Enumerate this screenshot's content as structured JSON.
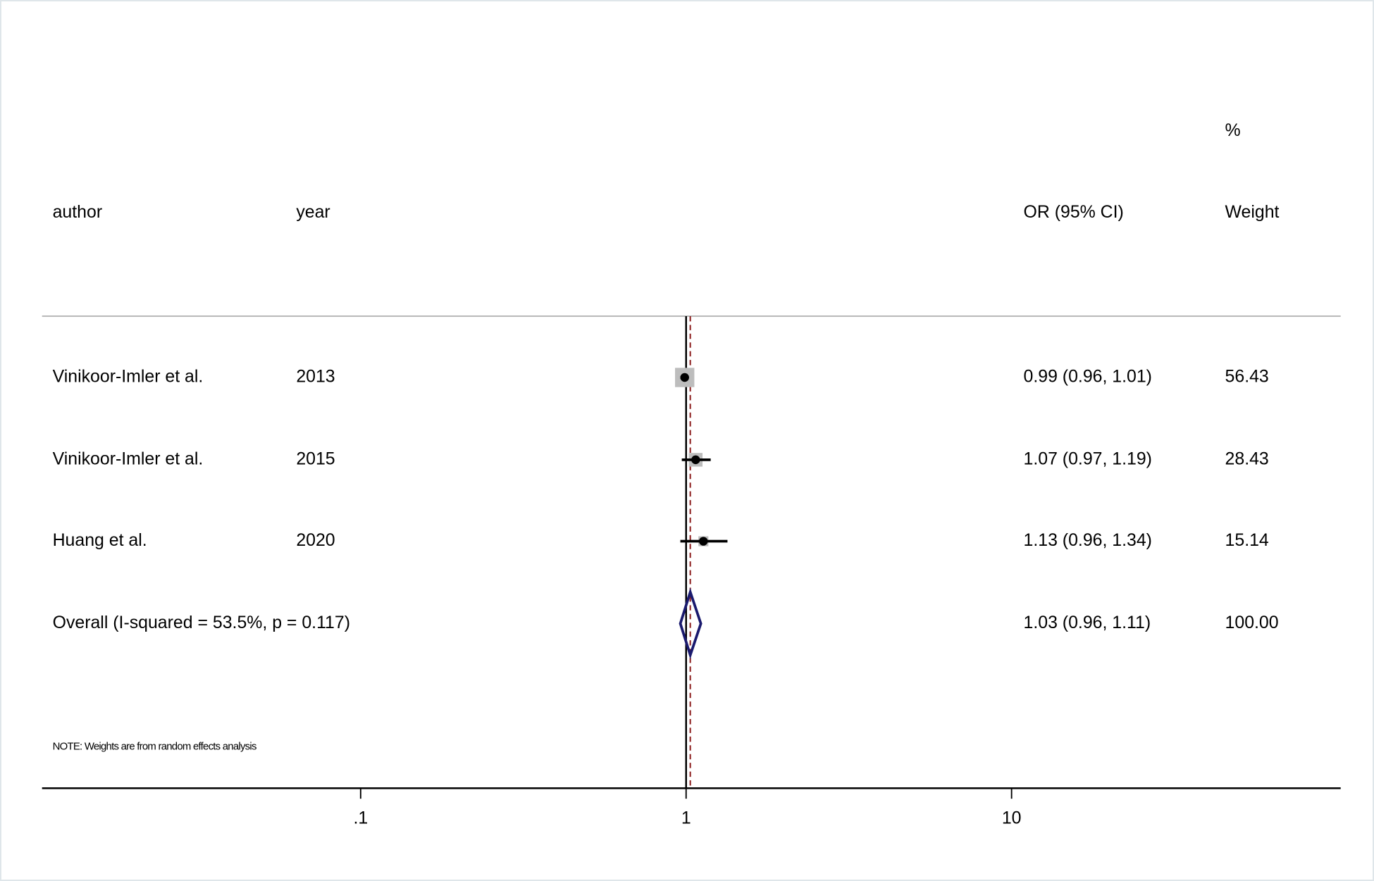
{
  "chart_data": {
    "type": "forest",
    "headers": {
      "author": "author",
      "year": "year",
      "estimate": "OR (95% CI)",
      "weight_top": "%",
      "weight": "Weight"
    },
    "studies": [
      {
        "author": "Vinikoor-Imler et al.",
        "year": "2013",
        "or": 0.99,
        "lo": 0.96,
        "hi": 1.01,
        "weight": 56.43,
        "value_labels": {
          "estimate": "0.99 (0.96, 1.01)"
        }
      },
      {
        "author": "Vinikoor-Imler et al.",
        "year": "2015",
        "or": 1.07,
        "lo": 0.97,
        "hi": 1.19,
        "weight": 28.43,
        "value_labels": {
          "estimate": "1.07 (0.97, 1.19)"
        }
      },
      {
        "author": "Huang et al.",
        "year": "2020",
        "or": 1.13,
        "lo": 0.96,
        "hi": 1.34,
        "weight": 15.14,
        "value_labels": {
          "estimate": "1.13 (0.96, 1.34)"
        }
      }
    ],
    "overall": {
      "label": "Overall  (I-squared = 53.5%, p = 0.117)",
      "or": 1.03,
      "lo": 0.96,
      "hi": 1.11,
      "weight": 100,
      "value_labels": {
        "estimate": "1.03 (0.96, 1.11)",
        "weight": "100.00"
      }
    },
    "note": "NOTE: Weights are from random effects analysis",
    "log_scale": true,
    "null_value": 1,
    "xlim": [
      0.0105,
      102.6
    ],
    "xticks": [
      {
        "value": 0.1,
        "label": ".1"
      },
      1,
      10
    ],
    "box_color": "#bdbdbd",
    "ci_color": "#000000",
    "diamond_color": "#1a1a6e",
    "ref_color": "#8b1a1a"
  }
}
